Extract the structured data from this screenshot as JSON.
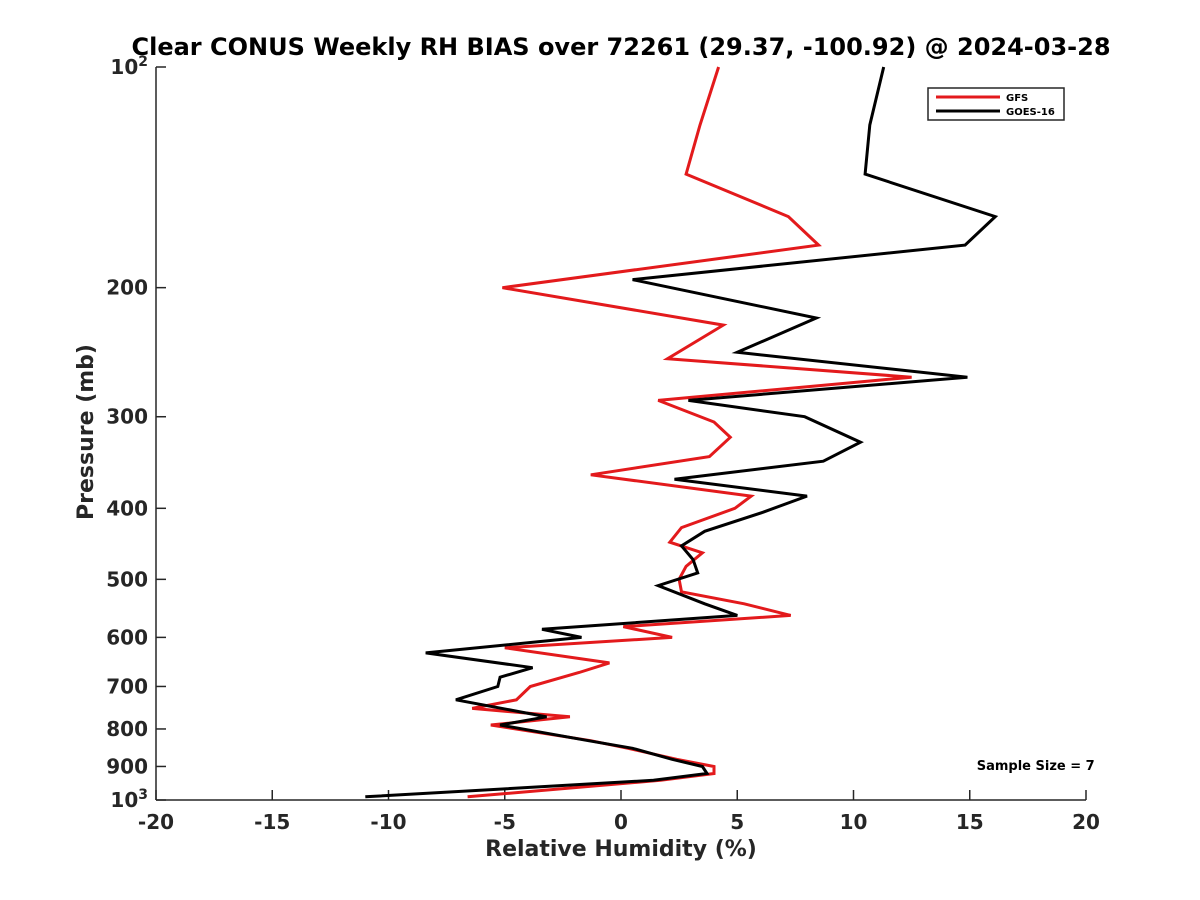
{
  "chart_data": {
    "type": "line",
    "title": "Clear CONUS Weekly RH BIAS over 72261 (29.37, -100.92) @ 2024-03-28",
    "xlabel": "Relative Humidity (%)",
    "ylabel": "Pressure (mb)",
    "xlim": [
      -20,
      20
    ],
    "ylim": [
      100,
      1000
    ],
    "y_scale": "log",
    "y_reversed": true,
    "grid": false,
    "legend_position": "top-right",
    "x_ticks": [
      -20,
      -15,
      -10,
      -5,
      0,
      5,
      10,
      15,
      20
    ],
    "x_tick_labels": [
      "-20",
      "-15",
      "-10",
      "-5",
      "0",
      "5",
      "10",
      "15",
      "20"
    ],
    "y_ticks": [
      {
        "value": 100,
        "base": "10",
        "exp": "2"
      },
      {
        "value": 200,
        "label": "200"
      },
      {
        "value": 300,
        "label": "300"
      },
      {
        "value": 400,
        "label": "400"
      },
      {
        "value": 500,
        "label": "500"
      },
      {
        "value": 600,
        "label": "600"
      },
      {
        "value": 700,
        "label": "700"
      },
      {
        "value": 800,
        "label": "800"
      },
      {
        "value": 900,
        "label": "900"
      },
      {
        "value": 1000,
        "base": "10",
        "exp": "3"
      }
    ],
    "series": [
      {
        "name": "GFS",
        "color": "#e31a1c",
        "points": [
          [
            4.2,
            100
          ],
          [
            3.4,
            120
          ],
          [
            2.8,
            140
          ],
          [
            7.2,
            160
          ],
          [
            8.5,
            175
          ],
          [
            -5.1,
            200
          ],
          [
            4.4,
            225
          ],
          [
            2.0,
            250
          ],
          [
            12.5,
            265
          ],
          [
            1.6,
            285
          ],
          [
            4.0,
            305
          ],
          [
            4.7,
            320
          ],
          [
            3.8,
            340
          ],
          [
            -1.3,
            360
          ],
          [
            5.6,
            385
          ],
          [
            4.9,
            400
          ],
          [
            2.6,
            425
          ],
          [
            2.1,
            445
          ],
          [
            3.5,
            460
          ],
          [
            2.8,
            480
          ],
          [
            2.5,
            500
          ],
          [
            2.6,
            520
          ],
          [
            5.3,
            540
          ],
          [
            7.3,
            560
          ],
          [
            0.1,
            580
          ],
          [
            2.2,
            600
          ],
          [
            -5.0,
            620
          ],
          [
            -0.5,
            650
          ],
          [
            -1.8,
            670
          ],
          [
            -3.9,
            700
          ],
          [
            -4.5,
            730
          ],
          [
            -6.4,
            750
          ],
          [
            -2.2,
            770
          ],
          [
            -5.6,
            790
          ],
          [
            -1.3,
            830
          ],
          [
            0.3,
            850
          ],
          [
            2.4,
            880
          ],
          [
            4.0,
            900
          ],
          [
            4.0,
            920
          ],
          [
            1.7,
            940
          ],
          [
            -6.6,
            990
          ]
        ]
      },
      {
        "name": "GOES-16",
        "color": "#000000",
        "points": [
          [
            11.3,
            100
          ],
          [
            10.7,
            120
          ],
          [
            10.5,
            140
          ],
          [
            16.1,
            160
          ],
          [
            14.8,
            175
          ],
          [
            0.5,
            195
          ],
          [
            8.4,
            220
          ],
          [
            5.0,
            245
          ],
          [
            14.9,
            265
          ],
          [
            2.9,
            285
          ],
          [
            7.9,
            300
          ],
          [
            10.3,
            325
          ],
          [
            8.7,
            345
          ],
          [
            2.3,
            365
          ],
          [
            8.0,
            385
          ],
          [
            6.1,
            405
          ],
          [
            3.6,
            430
          ],
          [
            2.6,
            450
          ],
          [
            3.1,
            470
          ],
          [
            3.3,
            490
          ],
          [
            1.6,
            510
          ],
          [
            3.6,
            540
          ],
          [
            5.0,
            560
          ],
          [
            -3.4,
            585
          ],
          [
            -1.7,
            600
          ],
          [
            -8.4,
            630
          ],
          [
            -3.8,
            660
          ],
          [
            -5.2,
            680
          ],
          [
            -5.3,
            700
          ],
          [
            -7.1,
            730
          ],
          [
            -3.2,
            770
          ],
          [
            -5.2,
            790
          ],
          [
            -1.4,
            830
          ],
          [
            0.5,
            850
          ],
          [
            2.2,
            880
          ],
          [
            3.5,
            900
          ],
          [
            3.7,
            920
          ],
          [
            1.4,
            940
          ],
          [
            -11.0,
            990
          ]
        ]
      }
    ],
    "annotations": [
      {
        "text": "Sample Size = 7",
        "x": 15.3,
        "y": 910
      }
    ]
  }
}
